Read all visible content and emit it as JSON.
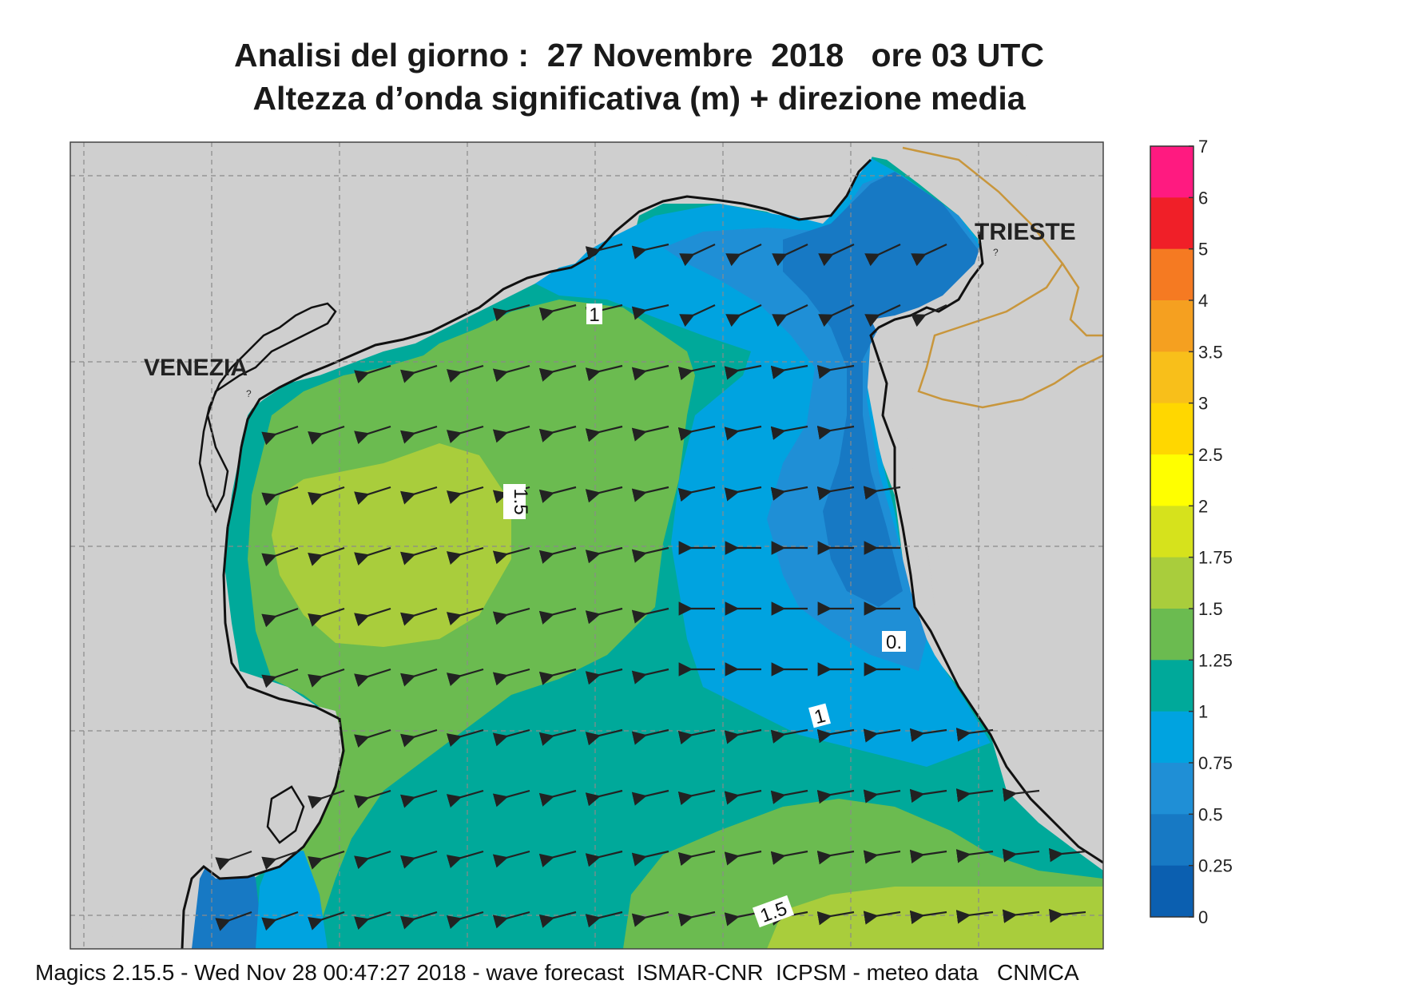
{
  "header": {
    "title_line1": "Analisi del giorno :  27 Novembre  2018   ore 03 UTC",
    "title_line2": "Altezza d’onda significativa (m) + direzione media"
  },
  "map_labels": {
    "venezia": "VENEZIA",
    "trieste": "TRIESTE",
    "city_marker": "?"
  },
  "contour_labels": {
    "one_north": "1",
    "one_east": "1",
    "one_five_center": "1.5",
    "one_five_south": "1.5",
    "zero_five": "0."
  },
  "legend": {
    "unit": "m",
    "ticks": [
      "7",
      "6",
      "5",
      "4",
      "3.5",
      "3",
      "2.5",
      "2",
      "1.75",
      "1.5",
      "1.25",
      "1",
      "0.75",
      "0.5",
      "0.25",
      "0"
    ],
    "colors": [
      "#ff1a80",
      "#f01f28",
      "#f57a22",
      "#f5a020",
      "#f8bf1a",
      "#ffd700",
      "#ffff00",
      "#d6e21c",
      "#a9cd3c",
      "#6bbb50",
      "#00a99a",
      "#00a3e0",
      "#1f8fd6",
      "#1779c4",
      "#0b5fb0"
    ]
  },
  "footer": "Magics 2.15.5 - Wed Nov 28 00:47:27 2018 - wave forecast  ISMAR-CNR  ICPSM - meteo data   CNMCA"
}
